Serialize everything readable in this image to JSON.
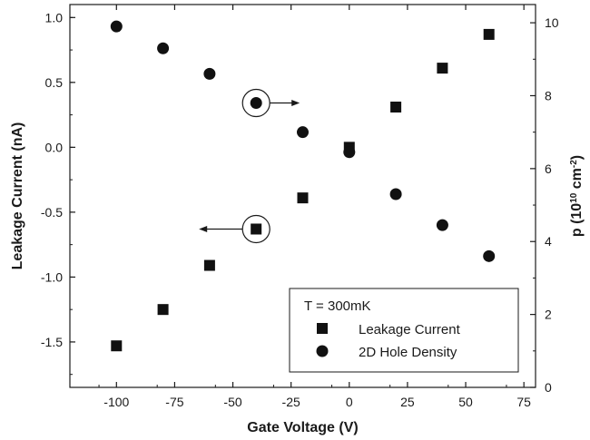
{
  "chart_data": {
    "type": "scatter",
    "title": "",
    "xlabel": "Gate Voltage (V)",
    "ylabel_left": "Leakage Current (nA)",
    "ylabel_right_main": "p (10",
    "ylabel_right_sup1": "10",
    "ylabel_right_mid": " cm",
    "ylabel_right_sup2": "-2",
    "ylabel_right_end": ")",
    "xlim": [
      -120,
      80
    ],
    "ylim_left": [
      -1.85,
      1.1
    ],
    "ylim_right": [
      0,
      10.5
    ],
    "x_ticks": [
      -100,
      -75,
      -50,
      -25,
      0,
      25,
      50,
      75
    ],
    "x_tick_labels": [
      "-100",
      "-75",
      "-50",
      "-25",
      "0",
      "25",
      "50",
      "75"
    ],
    "y_left_ticks": [
      1.0,
      0.5,
      0.0,
      -0.5,
      -1.0,
      -1.5
    ],
    "y_left_tick_labels": [
      "1.0",
      "0.5",
      "0.0",
      "-0.5",
      "-1.0",
      "-1.5"
    ],
    "y_right_ticks": [
      10,
      8,
      6,
      4,
      2,
      0
    ],
    "y_right_tick_labels": [
      "10",
      "8",
      "6",
      "4",
      "2",
      "0"
    ],
    "grid": false,
    "legend": {
      "position": "bottom-right",
      "title": "T = 300mK",
      "entries": [
        "Leakage Current",
        "2D Hole Density"
      ]
    },
    "series": [
      {
        "name": "Leakage Current",
        "marker": "square",
        "axis": "left",
        "x": [
          -100,
          -80,
          -60,
          -40,
          -20,
          0,
          20,
          40,
          60
        ],
        "y": [
          -1.53,
          -1.25,
          -0.91,
          -0.63,
          -0.39,
          0.0,
          0.31,
          0.61,
          0.87
        ]
      },
      {
        "name": "2D Hole Density",
        "marker": "circle",
        "axis": "right",
        "x": [
          -100,
          -80,
          -60,
          -40,
          -20,
          0,
          20,
          40,
          60
        ],
        "y": [
          9.9,
          9.3,
          8.6,
          7.8,
          7.0,
          6.45,
          5.3,
          4.45,
          3.6
        ]
      }
    ],
    "annotations": [
      {
        "type": "circled-point",
        "series": "2D Hole Density",
        "x": -40,
        "y": 7.8,
        "arrow": "right"
      },
      {
        "type": "circled-point",
        "series": "Leakage Current",
        "x": -40,
        "y": -0.63,
        "arrow": "left"
      }
    ],
    "colors": {
      "marker": "#111111",
      "axis": "#1a1a1a"
    }
  }
}
